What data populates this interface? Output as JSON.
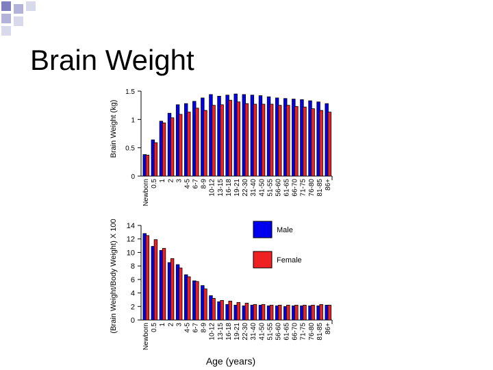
{
  "slide": {
    "title": "Brain Weight",
    "decoration_colors": [
      "#8080c0",
      "#b3b3d9",
      "#d9d9ec"
    ]
  },
  "chart_data": [
    {
      "type": "bar",
      "title": "",
      "xlabel": "",
      "ylabel": "Brain Weight (kg)",
      "ylim": [
        0,
        1.5
      ],
      "yticks": [
        "0",
        "0.5",
        "1",
        "1.5"
      ],
      "grid": false,
      "categories": [
        "Newborn",
        "0.5",
        "1",
        "2",
        "3",
        "4-5",
        "6-7",
        "8-9",
        "10-12",
        "13-15",
        "16-18",
        "19-21",
        "22-30",
        "31-40",
        "41-50",
        "51-55",
        "56-60",
        "61-65",
        "66-70",
        "71-75",
        "76-80",
        "81-85",
        "86+"
      ],
      "series": [
        {
          "name": "Male",
          "color": "#0000ee",
          "values": [
            0.38,
            0.64,
            0.97,
            1.11,
            1.26,
            1.28,
            1.32,
            1.38,
            1.44,
            1.41,
            1.43,
            1.45,
            1.44,
            1.43,
            1.42,
            1.4,
            1.38,
            1.37,
            1.36,
            1.35,
            1.33,
            1.31,
            1.28
          ]
        },
        {
          "name": "Female",
          "color": "#ee2222",
          "values": [
            0.37,
            0.59,
            0.94,
            1.03,
            1.09,
            1.13,
            1.2,
            1.16,
            1.25,
            1.26,
            1.34,
            1.31,
            1.28,
            1.27,
            1.27,
            1.27,
            1.25,
            1.25,
            1.23,
            1.22,
            1.19,
            1.16,
            1.13
          ]
        }
      ]
    },
    {
      "type": "bar",
      "title": "",
      "xlabel": "Age (years)",
      "ylabel": "(Brain Weight/Body Weight) X 100",
      "ylim": [
        0,
        14
      ],
      "yticks": [
        "0",
        "2",
        "4",
        "6",
        "8",
        "10",
        "12",
        "14"
      ],
      "grid": false,
      "legend": {
        "position": "top-right",
        "entries": [
          "Male",
          "Female"
        ]
      },
      "categories": [
        "Newborn",
        "0.5",
        "1",
        "2",
        "3",
        "4-5",
        "6-7",
        "8-9",
        "10-12",
        "13-15",
        "16-18",
        "19-21",
        "22-30",
        "31-40",
        "41-50",
        "51-55",
        "56-60",
        "61-65",
        "66-70",
        "71-75",
        "76-80",
        "81-85",
        "86+"
      ],
      "series": [
        {
          "name": "Male",
          "color": "#0000ee",
          "values": [
            12.8,
            10.9,
            10.3,
            8.5,
            8.2,
            6.7,
            5.8,
            5.1,
            3.6,
            2.7,
            2.3,
            2.2,
            2.1,
            2.2,
            2.2,
            2.1,
            2.1,
            2.0,
            2.1,
            2.1,
            2.1,
            2.1,
            2.2
          ]
        },
        {
          "name": "Female",
          "color": "#ee2222",
          "values": [
            12.5,
            11.9,
            10.6,
            9.1,
            7.7,
            6.4,
            5.7,
            4.6,
            3.2,
            2.9,
            2.8,
            2.6,
            2.5,
            2.3,
            2.3,
            2.2,
            2.2,
            2.2,
            2.2,
            2.2,
            2.2,
            2.3,
            2.2
          ]
        }
      ]
    }
  ]
}
